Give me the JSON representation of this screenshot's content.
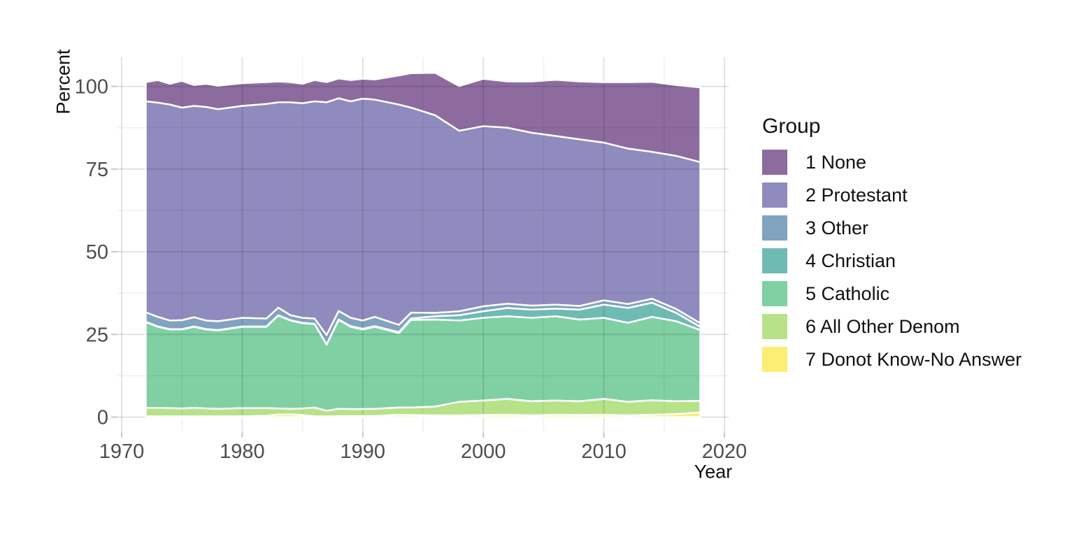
{
  "page": {
    "background": "#ffffff"
  },
  "chart_data": {
    "type": "area",
    "stacked": true,
    "title": "",
    "xlabel": "Year",
    "ylabel": "Percent",
    "legend": {
      "title": "Group",
      "position": "right"
    },
    "grid": "major+minor",
    "xlim": [
      1969.65,
      2020.35
    ],
    "ylim": [
      -4.55,
      108.8
    ],
    "x_ticks": {
      "major": [
        1970,
        1980,
        1990,
        2000,
        2010,
        2020
      ],
      "minor": [
        1975,
        1985,
        1995,
        2005,
        2015
      ]
    },
    "y_ticks": {
      "major": [
        0,
        25,
        50,
        75,
        100
      ],
      "minor": [
        12.5,
        37.5,
        62.5,
        87.5
      ]
    },
    "stroke_color": "#ffffff",
    "x": [
      1972,
      1973,
      1974,
      1975,
      1976,
      1977,
      1978,
      1980,
      1982,
      1983,
      1984,
      1985,
      1986,
      1987,
      1988,
      1989,
      1990,
      1991,
      1993,
      1994,
      1996,
      1998,
      2000,
      2002,
      2004,
      2006,
      2008,
      2010,
      2012,
      2014,
      2016,
      2018
    ],
    "stack_note": "series listed in legend order (top band first); areas are stacked bottom-to-top in reverse of this order",
    "series": [
      {
        "label": "1 None",
        "color": "#8d6b9f",
        "values": [
          5.8,
          6.8,
          6.3,
          8.1,
          6.3,
          7.0,
          7.1,
          6.9,
          6.6,
          6.3,
          6.1,
          5.9,
          6.4,
          6.1,
          6.0,
          6.4,
          6.0,
          6.1,
          8.8,
          10.4,
          12.8,
          13.5,
          14.3,
          14.0,
          15.5,
          17.0,
          17.5,
          18.3,
          20.1,
          21.2,
          21.4,
          22.6
        ]
      },
      {
        "label": "2 Protestant",
        "color": "#8f8bbe",
        "values": [
          63.8,
          64.8,
          65.3,
          64.3,
          63.9,
          64.6,
          64.1,
          64.1,
          64.9,
          62.1,
          64.4,
          64.9,
          65.7,
          70.4,
          64.3,
          65.5,
          67.1,
          65.7,
          66.6,
          62.0,
          59.8,
          54.6,
          54.5,
          53.2,
          52.3,
          51.0,
          50.4,
          47.7,
          47.0,
          44.4,
          46.3,
          48.7
        ]
      },
      {
        "label": "3 Other",
        "color": "#81a3bf",
        "values": [
          2.9,
          2.9,
          2.6,
          2.7,
          2.8,
          2.6,
          2.7,
          2.6,
          2.4,
          2.3,
          1.5,
          1.5,
          1.6,
          2.8,
          2.6,
          2.5,
          2.5,
          2.8,
          2.2,
          1.8,
          1.0,
          1.2,
          1.5,
          1.3,
          1.2,
          1.2,
          1.1,
          1.3,
          1.2,
          1.2,
          1.2,
          1.1
        ]
      },
      {
        "label": "4 Christian",
        "color": "#70bab4",
        "values": [
          0.1,
          0.1,
          0.1,
          0.1,
          0.1,
          0.1,
          0.1,
          0.1,
          0.1,
          0.1,
          0.1,
          0.1,
          0.1,
          0.1,
          0.1,
          0.2,
          0.2,
          0.2,
          0.3,
          0.4,
          1.0,
          1.6,
          2.0,
          2.5,
          2.5,
          2.3,
          3.0,
          4.0,
          4.5,
          4.3,
          2.5,
          1.0
        ]
      },
      {
        "label": "5 Catholic",
        "color": "#80d0a4",
        "values": [
          25.9,
          24.5,
          23.8,
          23.9,
          24.5,
          23.9,
          23.7,
          24.6,
          24.6,
          28.1,
          26.7,
          25.8,
          25.2,
          20.0,
          26.9,
          24.9,
          24.1,
          24.8,
          22.5,
          26.5,
          26.3,
          24.6,
          25.0,
          25.0,
          25.2,
          25.5,
          24.7,
          24.5,
          23.9,
          25.2,
          24.2,
          21.4
        ]
      },
      {
        "label": "6 All Other Denom",
        "color": "#b7e289",
        "values": [
          2.6,
          2.6,
          2.5,
          2.4,
          2.6,
          2.4,
          2.3,
          2.5,
          2.3,
          1.8,
          1.7,
          2.0,
          2.7,
          1.7,
          2.2,
          2.1,
          2.1,
          2.2,
          2.2,
          2.3,
          2.7,
          4.1,
          4.4,
          4.8,
          4.3,
          4.3,
          4.2,
          4.8,
          4.1,
          4.4,
          3.9,
          3.5
        ]
      },
      {
        "label": "7 Donot Know-No Answer",
        "color": "#fbee74",
        "values": [
          0.2,
          0.2,
          0.2,
          0.2,
          0.2,
          0.2,
          0.2,
          0.2,
          0.4,
          0.8,
          0.8,
          0.6,
          0.2,
          0.2,
          0.3,
          0.3,
          0.3,
          0.3,
          0.7,
          0.6,
          0.5,
          0.5,
          0.6,
          0.7,
          0.5,
          0.7,
          0.6,
          0.7,
          0.5,
          0.7,
          0.9,
          1.4
        ]
      }
    ]
  }
}
